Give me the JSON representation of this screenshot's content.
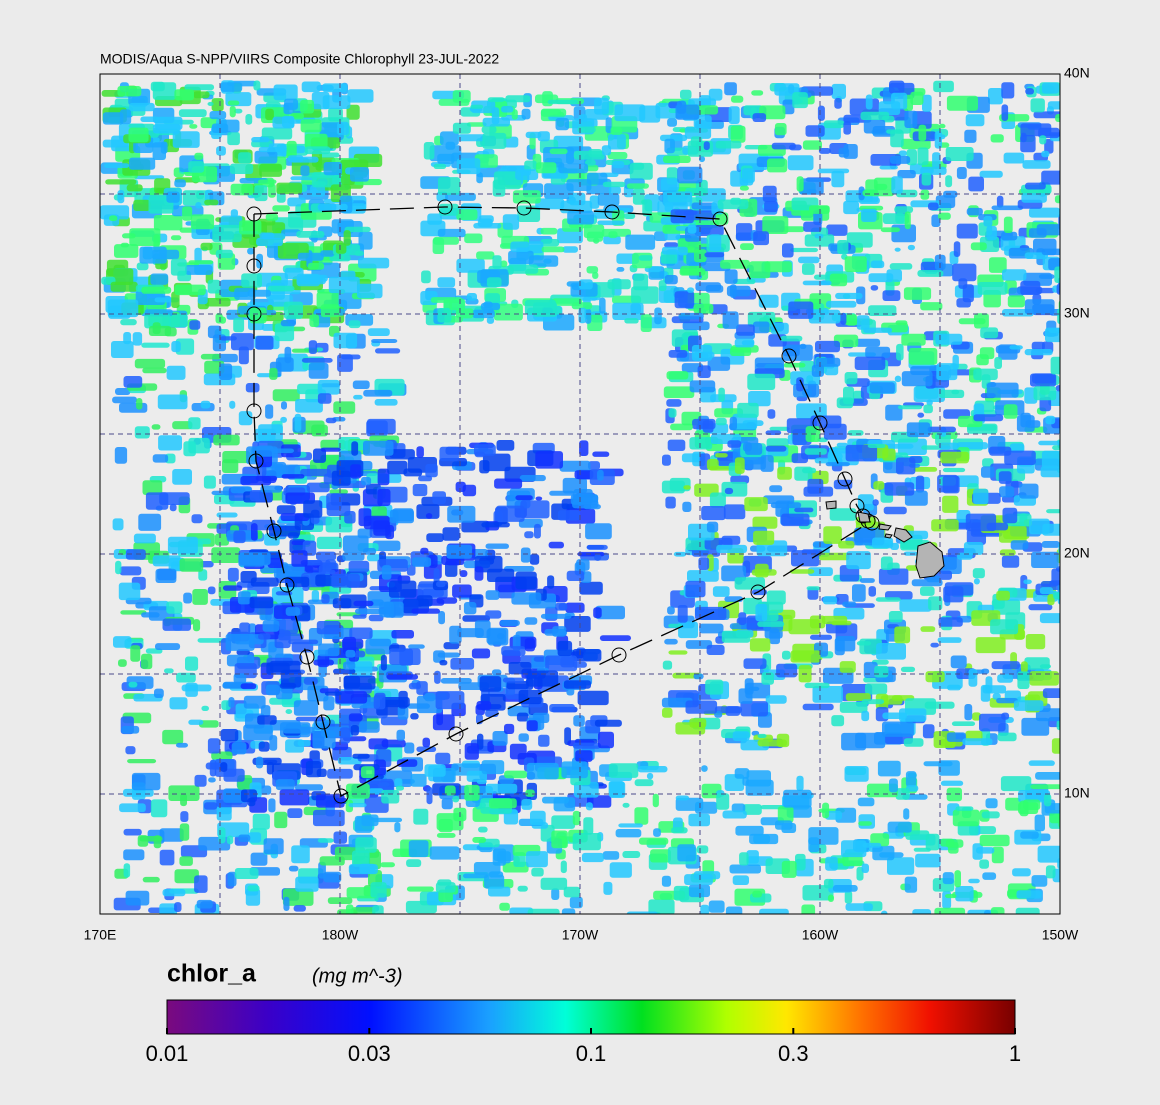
{
  "map": {
    "title": "MODIS/Aqua S-NPP/VIIRS Composite Chlorophyll 23-JUL-2022",
    "lon_lim": [
      170,
      210
    ],
    "lat_lim": [
      5,
      40
    ],
    "lon_ticks": [
      {
        "value": 170,
        "label": "170E"
      },
      {
        "value": 180,
        "label": "180W"
      },
      {
        "value": 190,
        "label": "170W"
      },
      {
        "value": 200,
        "label": "160W"
      },
      {
        "value": 210,
        "label": "150W"
      }
    ],
    "lat_ticks": [
      {
        "value": 40,
        "label": "40N"
      },
      {
        "value": 30,
        "label": "30N"
      },
      {
        "value": 20,
        "label": "20N"
      },
      {
        "value": 10,
        "label": "10N"
      }
    ],
    "lon_grid": [
      175,
      180,
      185,
      190,
      195,
      200,
      205
    ],
    "lat_grid": [
      10,
      15,
      20,
      25,
      30,
      35
    ]
  },
  "colorbar": {
    "title": "chlor_a",
    "units": "(mg m^-3)",
    "log_scale": true,
    "lim": [
      0.01,
      1
    ],
    "ticks": [
      0.01,
      0.03,
      0.1,
      0.3,
      1
    ]
  }
}
